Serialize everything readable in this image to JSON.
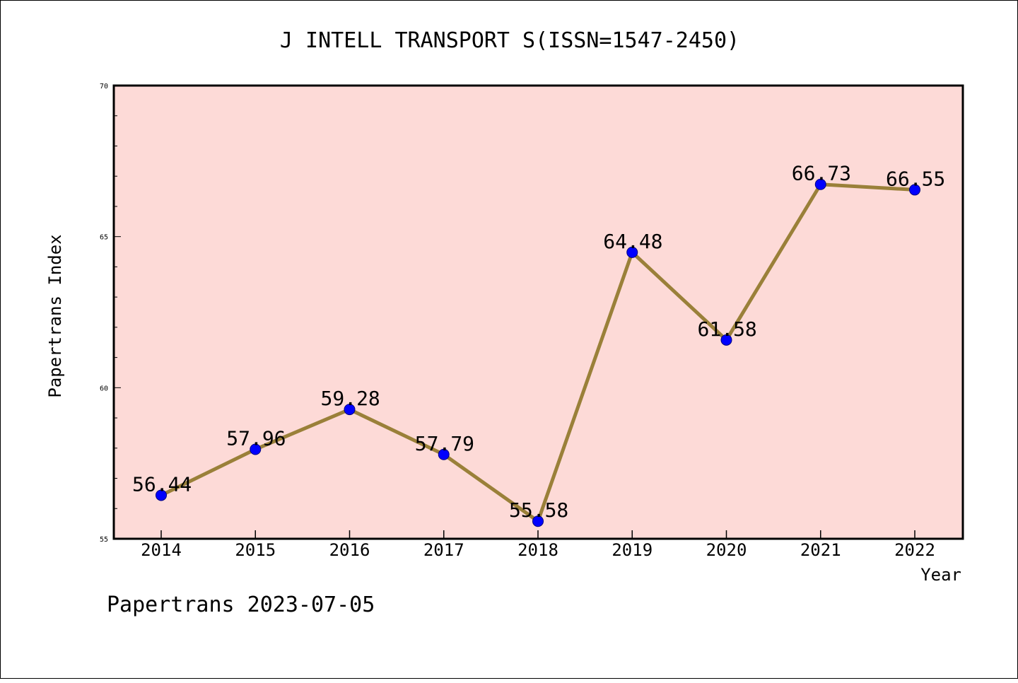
{
  "colors": {
    "plot_background": "#fddad7",
    "line": "#9a8039",
    "marker": "#0000ff",
    "marker_edge": "#000080"
  },
  "chart_data": {
    "type": "line",
    "title": "J INTELL TRANSPORT S(ISSN=1547-2450)",
    "xlabel": "Year",
    "ylabel": "Papertrans Index",
    "categories": [
      "2014",
      "2015",
      "2016",
      "2017",
      "2018",
      "2019",
      "2020",
      "2021",
      "2022"
    ],
    "series": [
      {
        "name": "Papertrans Index",
        "values": [
          56.44,
          57.96,
          59.28,
          57.79,
          55.58,
          64.48,
          61.58,
          66.73,
          66.55
        ],
        "labels": [
          "56.44",
          "57.96",
          "59.28",
          "57.79",
          "55.58",
          "64.48",
          "61.58",
          "66.73",
          "66.55"
        ]
      }
    ],
    "ylim": [
      55,
      70
    ],
    "yticks": [
      55,
      60,
      65,
      70
    ],
    "ytick_labels": [
      "55",
      "60",
      "65",
      "70"
    ],
    "y_minor_step": 1,
    "grid": false,
    "legend": "none",
    "footer": "Papertrans 2023-07-05"
  }
}
